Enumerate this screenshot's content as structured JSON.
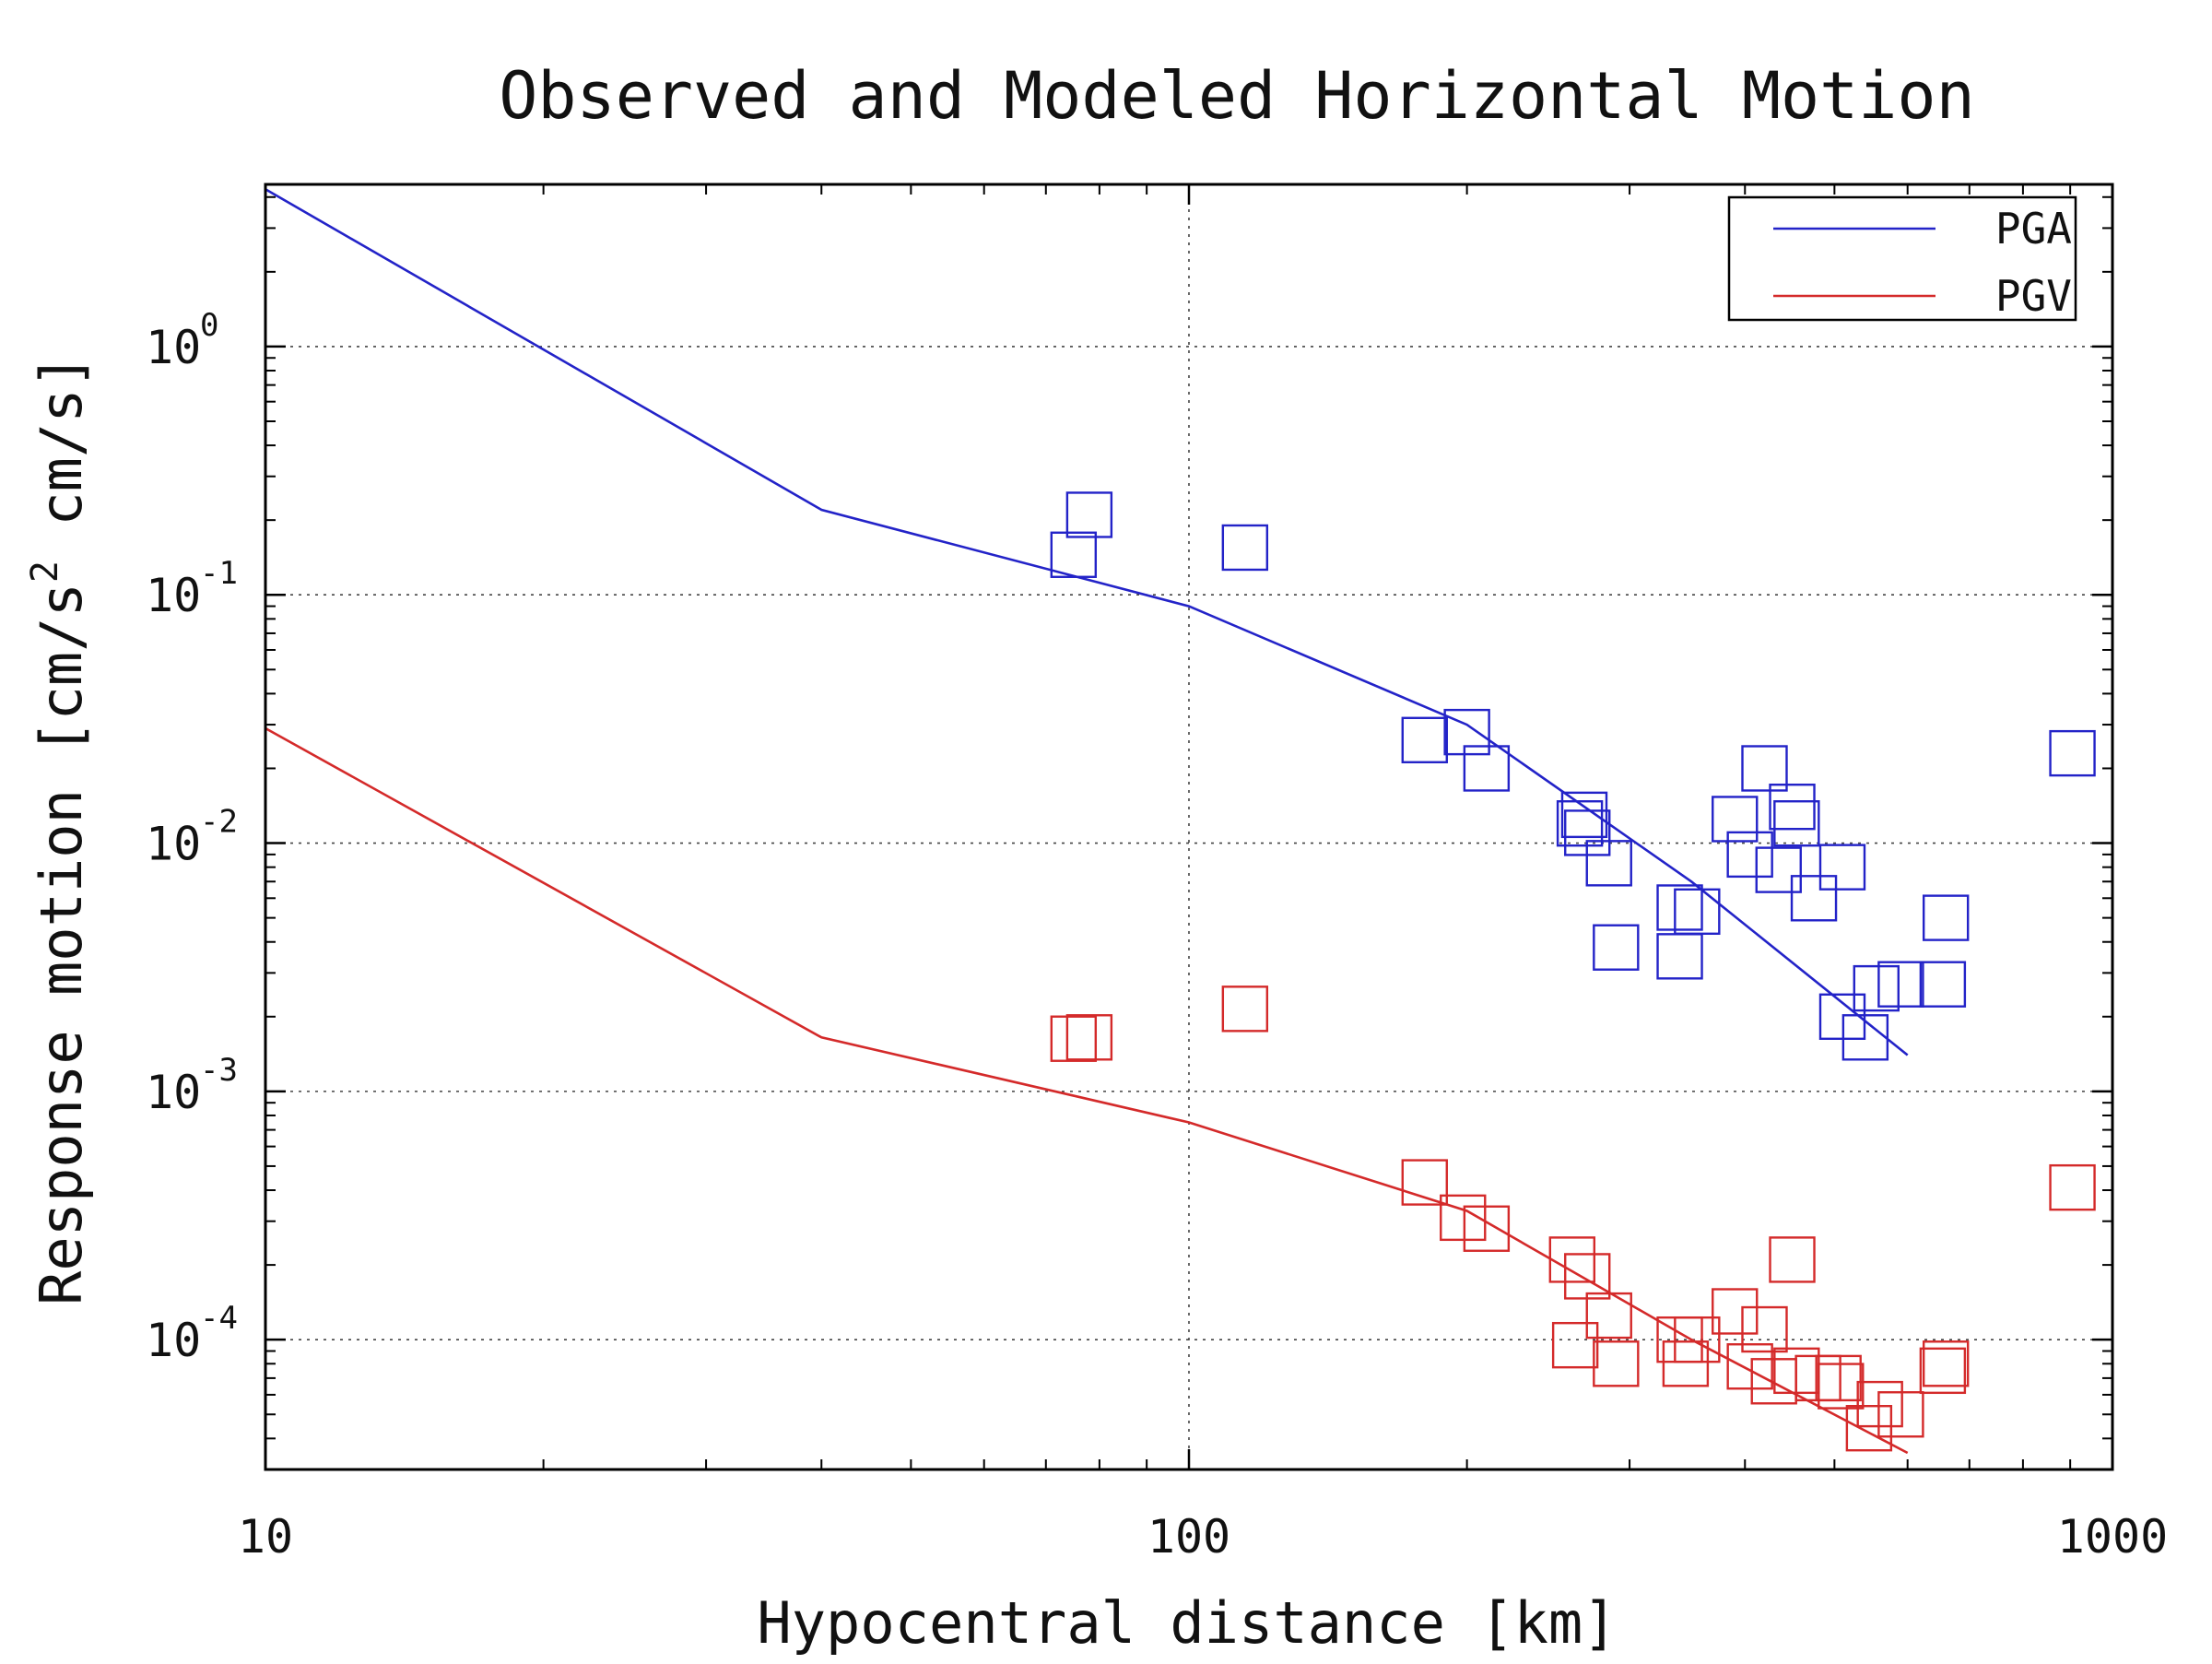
{
  "chart_data": {
    "type": "scatter",
    "title": "Observed and Modeled Horizontal Motion",
    "xlabel": "Hypocentral distance [km]",
    "ylabel_parts": [
      "Response motion  [cm/s",
      "2",
      "  cm/s]"
    ],
    "x_scale": "log",
    "y_scale": "log",
    "xlim": [
      10,
      1000
    ],
    "ylim": [
      3e-05,
      4.5
    ],
    "x_ticks": [
      {
        "value": 10,
        "label": "10"
      },
      {
        "value": 100,
        "label": "100"
      },
      {
        "value": 1000,
        "label": "1000"
      }
    ],
    "y_ticks": [
      {
        "value": 1,
        "base": "10",
        "exp": "0"
      },
      {
        "value": 0.1,
        "base": "10",
        "exp": "-1"
      },
      {
        "value": 0.01,
        "base": "10",
        "exp": "-2"
      },
      {
        "value": 0.001,
        "base": "10",
        "exp": "-3"
      },
      {
        "value": 0.0001,
        "base": "10",
        "exp": "-4"
      }
    ],
    "grid": true,
    "legend_position": "top-right",
    "series": [
      {
        "name": "PGA",
        "color": "#2323c8",
        "model_x": [
          10,
          40,
          100,
          200,
          350,
          600
        ],
        "model_y": [
          4.3,
          0.22,
          0.09,
          0.03,
          0.007,
          0.0014
        ],
        "observed": [
          [
            75,
            0.145
          ],
          [
            78,
            0.21
          ],
          [
            115,
            0.155
          ],
          [
            180,
            0.026
          ],
          [
            200,
            0.028
          ],
          [
            210,
            0.02
          ],
          [
            265,
            0.012
          ],
          [
            268,
            0.013
          ],
          [
            270,
            0.011
          ],
          [
            285,
            0.0083
          ],
          [
            290,
            0.0038
          ],
          [
            340,
            0.0055
          ],
          [
            340,
            0.0035
          ],
          [
            355,
            0.0053
          ],
          [
            390,
            0.0125
          ],
          [
            405,
            0.009
          ],
          [
            420,
            0.02
          ],
          [
            435,
            0.0078
          ],
          [
            450,
            0.014
          ],
          [
            455,
            0.012
          ],
          [
            475,
            0.006
          ],
          [
            510,
            0.008
          ],
          [
            510,
            0.002
          ],
          [
            540,
            0.00165
          ],
          [
            555,
            0.0026
          ],
          [
            590,
            0.0027
          ],
          [
            655,
            0.0027
          ],
          [
            660,
            0.005
          ],
          [
            905,
            0.023
          ]
        ]
      },
      {
        "name": "PGV",
        "color": "#d42a2a",
        "model_x": [
          10,
          40,
          100,
          200,
          350,
          600
        ],
        "model_y": [
          0.029,
          0.00165,
          0.00075,
          0.00033,
          0.0001,
          3.5e-05
        ],
        "observed": [
          [
            75,
            0.00163
          ],
          [
            78,
            0.00165
          ],
          [
            115,
            0.00215
          ],
          [
            180,
            0.00043
          ],
          [
            198,
            0.00031
          ],
          [
            210,
            0.00028
          ],
          [
            260,
            0.00021
          ],
          [
            262,
            9.5e-05
          ],
          [
            270,
            0.00018
          ],
          [
            285,
            0.000125
          ],
          [
            290,
            8e-05
          ],
          [
            340,
            0.0001
          ],
          [
            345,
            8e-05
          ],
          [
            355,
            0.0001
          ],
          [
            390,
            0.00013
          ],
          [
            405,
            7.8e-05
          ],
          [
            420,
            0.00011
          ],
          [
            430,
            6.8e-05
          ],
          [
            450,
            0.00021
          ],
          [
            455,
            7.5e-05
          ],
          [
            480,
            7e-05
          ],
          [
            505,
            7e-05
          ],
          [
            508,
            6.5e-05
          ],
          [
            545,
            4.4e-05
          ],
          [
            560,
            5.5e-05
          ],
          [
            590,
            5e-05
          ],
          [
            655,
            7.5e-05
          ],
          [
            660,
            8e-05
          ],
          [
            905,
            0.00041
          ]
        ]
      }
    ]
  }
}
